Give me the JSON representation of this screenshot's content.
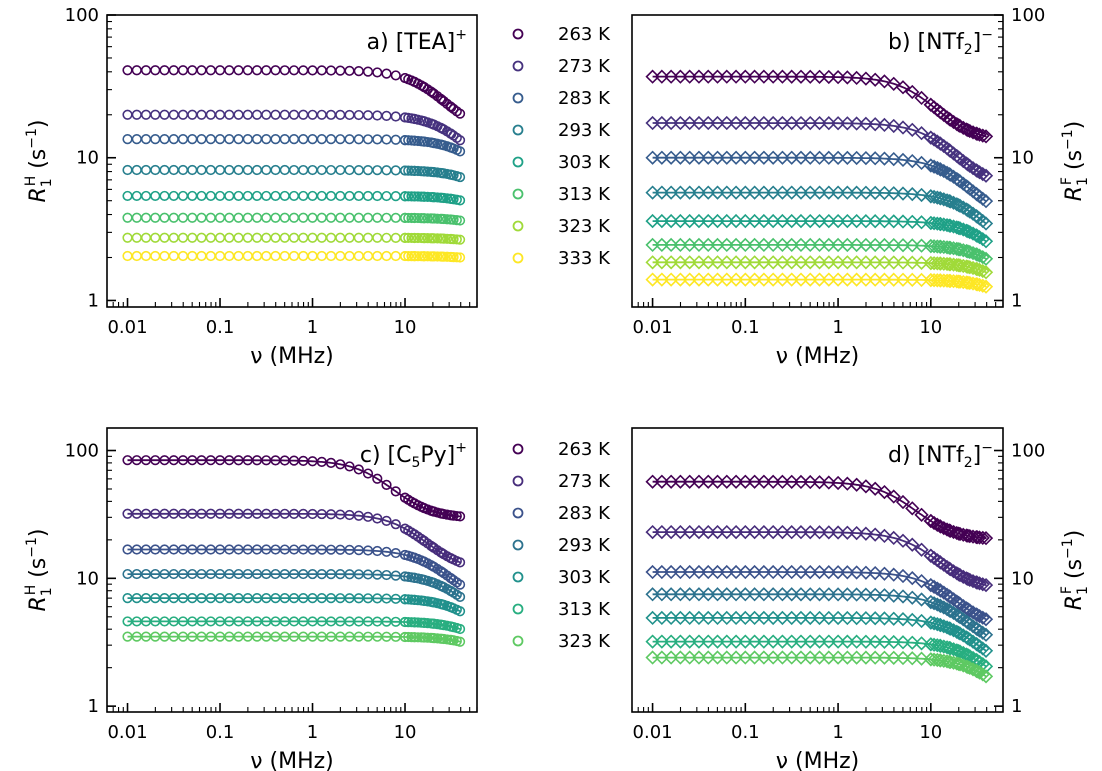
{
  "chart_data": [
    {
      "type": "scatter",
      "panel": "a",
      "title_main": "a) [TEA]",
      "title_sup": "+",
      "xlabel": "ν (MHz)",
      "ylabel_main": "R",
      "ylabel_sub": "1",
      "ylabel_sup": "H",
      "ylabel_unit": " (s",
      "ylabel_unit_sup": "−1",
      "ylabel_close": ")",
      "yaxis_side": "left",
      "xscale": "log",
      "yscale": "log",
      "xlim": [
        0.006,
        60
      ],
      "ylim": [
        0.9,
        100
      ],
      "xticks": [
        "0.01",
        "0.1",
        "1",
        "10"
      ],
      "yticks": [
        "1",
        "10",
        "100"
      ],
      "marker": "circle",
      "fit_lines": false,
      "series": [
        {
          "name": "263 K",
          "color": "#440154",
          "plateau": 41,
          "tau": 0.0075
        },
        {
          "name": "273 K",
          "color": "#46327e",
          "plateau": 20,
          "tau": 0.0042
        },
        {
          "name": "283 K",
          "color": "#365c8d",
          "plateau": 13.5,
          "tau": 0.0025
        },
        {
          "name": "293 K",
          "color": "#277f8e",
          "plateau": 8.2,
          "tau": 0.0018
        },
        {
          "name": "303 K",
          "color": "#1fa187",
          "plateau": 5.4,
          "tau": 0.0014
        },
        {
          "name": "313 K",
          "color": "#4ac16d",
          "plateau": 3.8,
          "tau": 0.0011
        },
        {
          "name": "323 K",
          "color": "#a0da39",
          "plateau": 2.75,
          "tau": 0.0009
        },
        {
          "name": "333 K",
          "color": "#fde725",
          "plateau": 2.05,
          "tau": 0.0008
        }
      ]
    },
    {
      "type": "scatter",
      "panel": "b",
      "title_main": "b) [NTf",
      "title_sub": "2",
      "title_close": "]",
      "title_sup": "−",
      "xlabel": "ν (MHz)",
      "ylabel_main": "R",
      "ylabel_sub": "1",
      "ylabel_sup": "F",
      "ylabel_unit": " (s",
      "ylabel_unit_sup": "−1",
      "ylabel_close": ")",
      "yaxis_side": "right",
      "xscale": "log",
      "yscale": "log",
      "xlim": [
        0.006,
        60
      ],
      "ylim": [
        0.9,
        100
      ],
      "xticks": [
        "0.01",
        "0.1",
        "1",
        "10"
      ],
      "yticks": [
        "1",
        "10",
        "100"
      ],
      "marker": "diamond",
      "fit_lines": true,
      "series": [
        {
          "name": "263 K",
          "color": "#440154",
          "plateau": 37,
          "tau": 0.018
        },
        {
          "name": "273 K",
          "color": "#46327e",
          "plateau": 17.5,
          "tau": 0.011
        },
        {
          "name": "283 K",
          "color": "#365c8d",
          "plateau": 10,
          "tau": 0.0075
        },
        {
          "name": "293 K",
          "color": "#277f8e",
          "plateau": 5.7,
          "tau": 0.005
        },
        {
          "name": "303 K",
          "color": "#1fa187",
          "plateau": 3.6,
          "tau": 0.0035
        },
        {
          "name": "313 K",
          "color": "#4ac16d",
          "plateau": 2.45,
          "tau": 0.0027
        },
        {
          "name": "323 K",
          "color": "#a0da39",
          "plateau": 1.85,
          "tau": 0.0022
        },
        {
          "name": "333 K",
          "color": "#fde725",
          "plateau": 1.4,
          "tau": 0.0018
        }
      ]
    },
    {
      "type": "scatter",
      "panel": "c",
      "title_main": "c) [C",
      "title_sub": "5",
      "title_close": "Py]",
      "title_sup": "+",
      "xlabel": "ν (MHz)",
      "ylabel_main": "R",
      "ylabel_sub": "1",
      "ylabel_sup": "H",
      "ylabel_unit": " (s",
      "ylabel_unit_sup": "−1",
      "ylabel_close": ")",
      "yaxis_side": "left",
      "xscale": "log",
      "yscale": "log",
      "xlim": [
        0.006,
        60
      ],
      "ylim": [
        0.9,
        150
      ],
      "xticks": [
        "0.01",
        "0.1",
        "1",
        "10"
      ],
      "yticks": [
        "1",
        "10",
        "100"
      ],
      "marker": "circle",
      "fit_lines": true,
      "series": [
        {
          "name": "263 K",
          "color": "#440154",
          "plateau": 84,
          "tau": 0.028
        },
        {
          "name": "273 K",
          "color": "#472d7b",
          "plateau": 32,
          "tau": 0.012
        },
        {
          "name": "283 K",
          "color": "#3b528b",
          "plateau": 16.8,
          "tau": 0.0065
        },
        {
          "name": "293 K",
          "color": "#2c728e",
          "plateau": 10.8,
          "tau": 0.0042
        },
        {
          "name": "303 K",
          "color": "#21918c",
          "plateau": 7.0,
          "tau": 0.0028
        },
        {
          "name": "313 K",
          "color": "#28ae80",
          "plateau": 4.6,
          "tau": 0.002
        },
        {
          "name": "323 K",
          "color": "#5ec962",
          "plateau": 3.5,
          "tau": 0.0016
        }
      ]
    },
    {
      "type": "scatter",
      "panel": "d",
      "title_main": "d) [NTf",
      "title_sub": "2",
      "title_close": "]",
      "title_sup": "−",
      "xlabel": "ν (MHz)",
      "ylabel_main": "R",
      "ylabel_sub": "1",
      "ylabel_sup": "F",
      "ylabel_unit": " (s",
      "ylabel_unit_sup": "−1",
      "ylabel_close": ")",
      "yaxis_side": "right",
      "xscale": "log",
      "yscale": "log",
      "xlim": [
        0.006,
        60
      ],
      "ylim": [
        0.9,
        150
      ],
      "xticks": [
        "0.01",
        "0.1",
        "1",
        "10"
      ],
      "yticks": [
        "1",
        "10",
        "100"
      ],
      "marker": "diamond",
      "fit_lines": true,
      "series": [
        {
          "name": "263 K",
          "color": "#440154",
          "plateau": 57,
          "tau": 0.03
        },
        {
          "name": "273 K",
          "color": "#472d7b",
          "plateau": 23,
          "tau": 0.017
        },
        {
          "name": "283 K",
          "color": "#3b528b",
          "plateau": 11.2,
          "tau": 0.011
        },
        {
          "name": "293 K",
          "color": "#2c728e",
          "plateau": 7.5,
          "tau": 0.008
        },
        {
          "name": "303 K",
          "color": "#21918c",
          "plateau": 4.9,
          "tau": 0.006
        },
        {
          "name": "313 K",
          "color": "#28ae80",
          "plateau": 3.2,
          "tau": 0.0045
        },
        {
          "name": "323 K",
          "color": "#5ec962",
          "plateau": 2.4,
          "tau": 0.0036
        }
      ]
    }
  ],
  "legends": [
    {
      "position": "between-top-panels",
      "entries": [
        {
          "label": "263 K",
          "color": "#440154"
        },
        {
          "label": "273 K",
          "color": "#46327e"
        },
        {
          "label": "283 K",
          "color": "#365c8d"
        },
        {
          "label": "293 K",
          "color": "#277f8e"
        },
        {
          "label": "303 K",
          "color": "#1fa187"
        },
        {
          "label": "313 K",
          "color": "#4ac16d"
        },
        {
          "label": "323 K",
          "color": "#a0da39"
        },
        {
          "label": "333 K",
          "color": "#fde725"
        }
      ]
    },
    {
      "position": "between-bottom-panels",
      "entries": [
        {
          "label": "263 K",
          "color": "#440154"
        },
        {
          "label": "273 K",
          "color": "#472d7b"
        },
        {
          "label": "283 K",
          "color": "#3b528b"
        },
        {
          "label": "293 K",
          "color": "#2c728e"
        },
        {
          "label": "303 K",
          "color": "#21918c"
        },
        {
          "label": "313 K",
          "color": "#28ae80"
        },
        {
          "label": "323 K",
          "color": "#5ec962"
        }
      ]
    }
  ]
}
